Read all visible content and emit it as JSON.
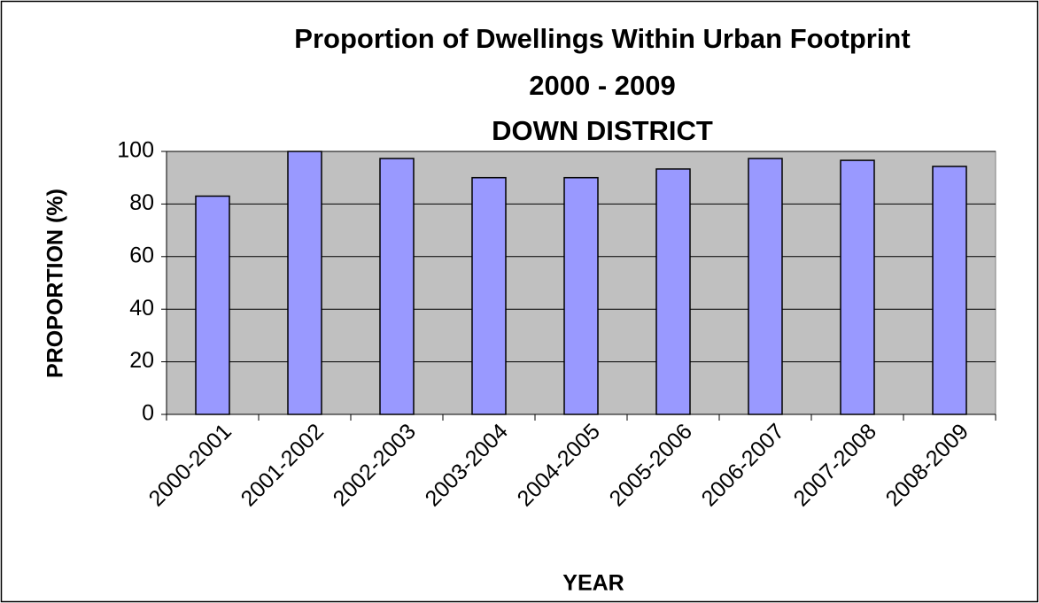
{
  "chart_data": {
    "type": "bar",
    "title": [
      "Proportion of Dwellings Within Urban Footprint",
      "2000 - 2009",
      "DOWN DISTRICT"
    ],
    "x_label": "YEAR",
    "y_label": "PROPORTION (%)",
    "categories": [
      "2000-2001",
      "2001-2002",
      "2002-2003",
      "2003-2004",
      "2004-2005",
      "2005-2006",
      "2006-2007",
      "2007-2008",
      "2008-2009"
    ],
    "values": [
      83,
      100,
      97.3,
      90,
      90,
      93.3,
      97.3,
      96.6,
      94.3
    ],
    "color": "#9999ff",
    "plot_background": "#c0c0c0",
    "ylim": [
      0,
      100
    ],
    "yticks": [
      0,
      20,
      40,
      60,
      80,
      100
    ],
    "grid": true
  }
}
